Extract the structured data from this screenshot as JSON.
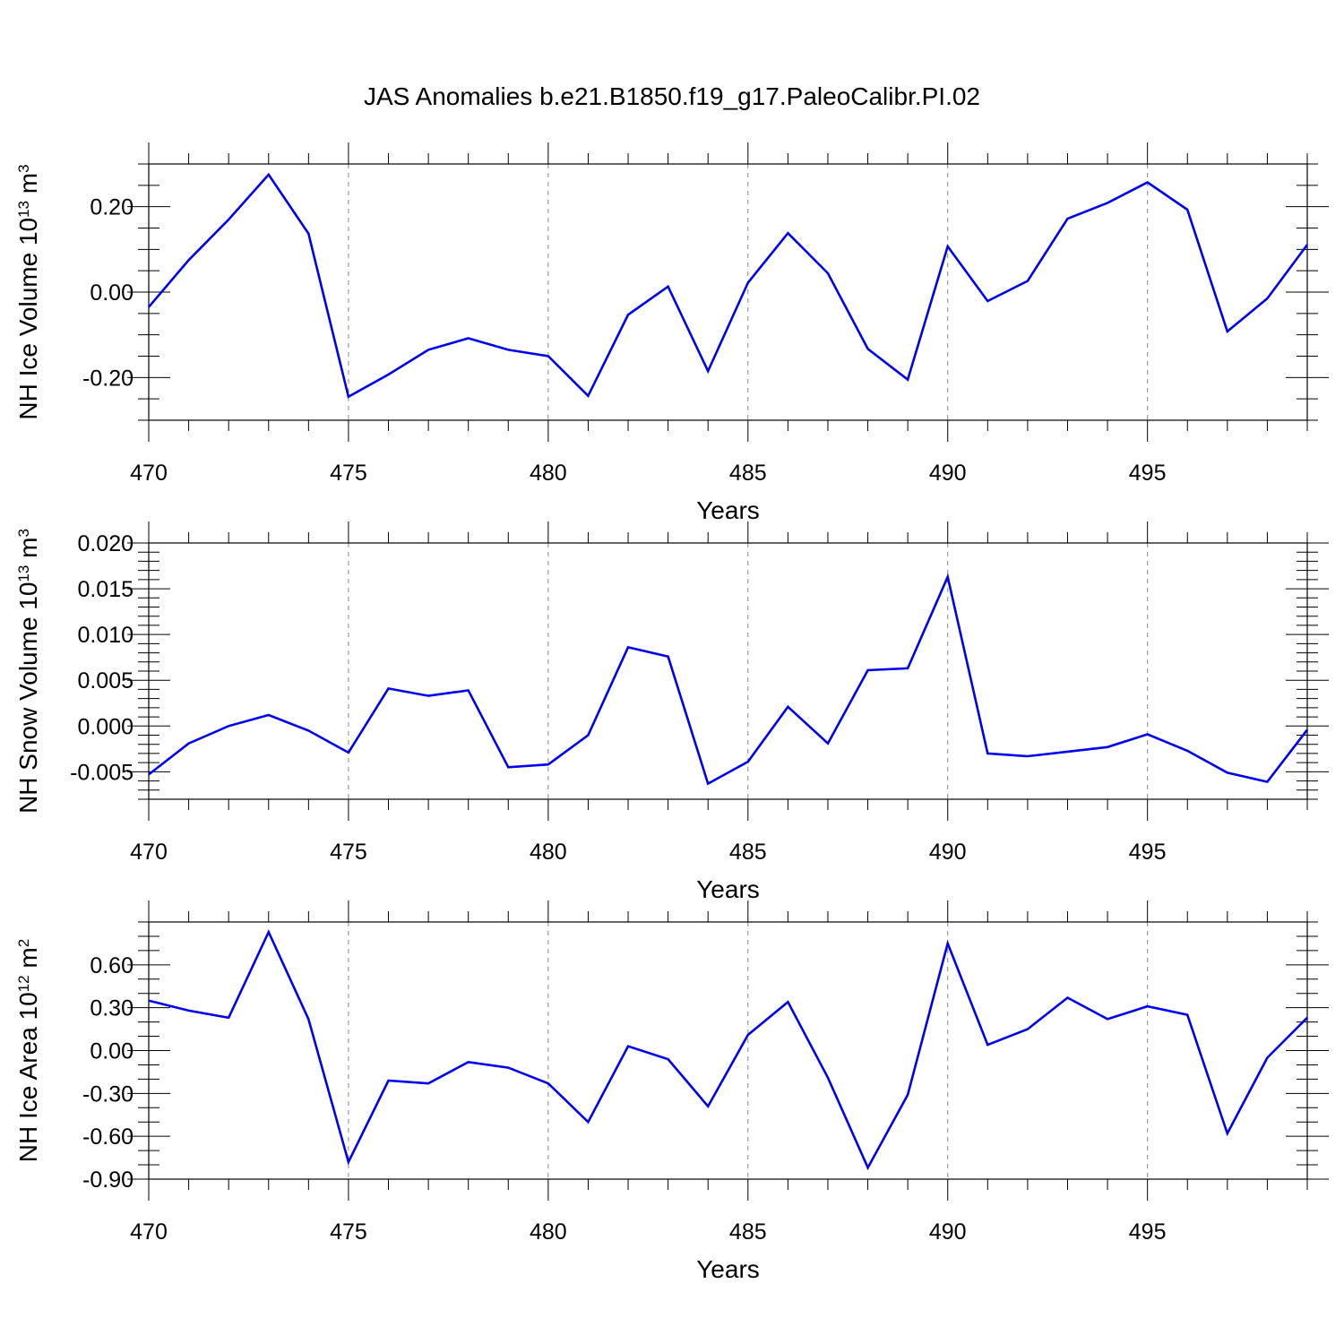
{
  "title": "JAS Anomalies b.e21.B1850.f19_g17.PaleoCalibr.PI.02",
  "colors": {
    "series": "#0000f0",
    "grid": "#888888",
    "axis": "#000000"
  },
  "chart_data": [
    {
      "type": "line",
      "xlabel": "Years",
      "ylabel": "NH Ice Volume 10",
      "ylabel_sup": "13",
      "ylabel_unit": " m",
      "ylabel_unit_sup": "3",
      "xlim": [
        470,
        499
      ],
      "ylim": [
        -0.3,
        0.3
      ],
      "xticks": [
        470,
        475,
        480,
        485,
        490,
        495
      ],
      "xtick_labels": [
        "470",
        "475",
        "480",
        "485",
        "490",
        "495"
      ],
      "yticks": [
        -0.2,
        0.0,
        0.2
      ],
      "ytick_labels": [
        "-0.20",
        "0.00",
        "0.20"
      ],
      "y_minor_step": 0.05,
      "grid": "x-dashed",
      "x": [
        470,
        471,
        472,
        473,
        474,
        475,
        476,
        477,
        478,
        479,
        480,
        481,
        482,
        483,
        484,
        485,
        486,
        487,
        488,
        489,
        490,
        491,
        492,
        493,
        494,
        495,
        496,
        497,
        498,
        499
      ],
      "values": [
        -0.035,
        0.075,
        0.17,
        0.275,
        0.137,
        -0.245,
        -0.193,
        -0.135,
        -0.108,
        -0.135,
        -0.15,
        -0.243,
        -0.053,
        0.013,
        -0.185,
        0.022,
        0.138,
        0.044,
        -0.133,
        -0.205,
        0.107,
        -0.021,
        0.026,
        0.172,
        0.209,
        0.257,
        0.193,
        -0.092,
        -0.015,
        0.111
      ]
    },
    {
      "type": "line",
      "xlabel": "Years",
      "ylabel": "NH Snow Volume 10",
      "ylabel_sup": "13",
      "ylabel_unit": " m",
      "ylabel_unit_sup": "3",
      "xlim": [
        470,
        499
      ],
      "ylim": [
        -0.008,
        0.02
      ],
      "xticks": [
        470,
        475,
        480,
        485,
        490,
        495
      ],
      "xtick_labels": [
        "470",
        "475",
        "480",
        "485",
        "490",
        "495"
      ],
      "yticks": [
        -0.005,
        0.0,
        0.005,
        0.01,
        0.015,
        0.02
      ],
      "ytick_labels": [
        "-0.005",
        "0.000",
        "0.005",
        "0.010",
        "0.015",
        "0.020"
      ],
      "y_minor_step": 0.001,
      "grid": "x-dashed",
      "x": [
        470,
        471,
        472,
        473,
        474,
        475,
        476,
        477,
        478,
        479,
        480,
        481,
        482,
        483,
        484,
        485,
        486,
        487,
        488,
        489,
        490,
        491,
        492,
        493,
        494,
        495,
        496,
        497,
        498,
        499
      ],
      "values": [
        -0.0053,
        -0.0019,
        0.0,
        0.0012,
        -0.0005,
        -0.0029,
        0.0041,
        0.0033,
        0.0039,
        -0.0045,
        -0.0042,
        -0.001,
        0.0086,
        0.0076,
        -0.0063,
        -0.0039,
        0.0021,
        -0.0019,
        0.0061,
        0.0063,
        0.0163,
        -0.003,
        -0.0033,
        -0.0028,
        -0.0023,
        -0.0009,
        -0.0027,
        -0.0051,
        -0.0061,
        -0.0004
      ]
    },
    {
      "type": "line",
      "xlabel": "Years",
      "ylabel": "NH Ice Area 10",
      "ylabel_sup": "12",
      "ylabel_unit": " m",
      "ylabel_unit_sup": "2",
      "xlim": [
        470,
        499
      ],
      "ylim": [
        -0.9,
        0.9
      ],
      "xticks": [
        470,
        475,
        480,
        485,
        490,
        495
      ],
      "xtick_labels": [
        "470",
        "475",
        "480",
        "485",
        "490",
        "495"
      ],
      "yticks": [
        -0.9,
        -0.6,
        -0.3,
        0.0,
        0.3,
        0.6
      ],
      "ytick_labels": [
        "-0.90",
        "-0.60",
        "-0.30",
        "0.00",
        "0.30",
        "0.60"
      ],
      "y_minor_step": 0.1,
      "grid": "x-dashed",
      "x": [
        470,
        471,
        472,
        473,
        474,
        475,
        476,
        477,
        478,
        479,
        480,
        481,
        482,
        483,
        484,
        485,
        486,
        487,
        488,
        489,
        490,
        491,
        492,
        493,
        494,
        495,
        496,
        497,
        498,
        499
      ],
      "values": [
        0.35,
        0.28,
        0.23,
        0.83,
        0.22,
        -0.78,
        -0.21,
        -0.23,
        -0.08,
        -0.12,
        -0.23,
        -0.5,
        0.03,
        -0.06,
        -0.39,
        0.11,
        0.34,
        -0.19,
        -0.82,
        -0.31,
        0.75,
        0.04,
        0.15,
        0.37,
        0.22,
        0.31,
        0.25,
        -0.58,
        -0.05,
        0.23
      ]
    }
  ]
}
